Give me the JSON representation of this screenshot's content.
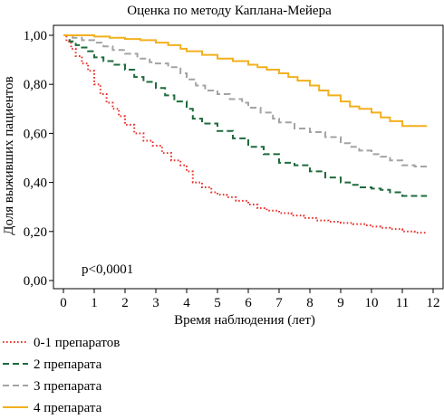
{
  "chart_data": {
    "type": "line",
    "title": "Оценка по методу Каплана-Мейера",
    "xlabel": "Время наблюдения (лет)",
    "ylabel": "Доля выживших пациентов",
    "xlim": [
      0,
      12
    ],
    "ylim": [
      0,
      1
    ],
    "x_ticks": [
      "0",
      "1",
      "2",
      "3",
      "4",
      "5",
      "6",
      "7",
      "8",
      "9",
      "10",
      "11",
      "12"
    ],
    "y_ticks": [
      "0,00",
      "0,20",
      "0,40",
      "0,60",
      "0,80",
      "1,00"
    ],
    "grid": false,
    "legend_position": "bottom-left",
    "annotation": "p<0,0001",
    "series": [
      {
        "name": "0-1 препаратов",
        "color": "#e8322d",
        "dash": "dotted",
        "x": [
          0,
          0.1,
          0.25,
          0.4,
          0.6,
          0.8,
          1.0,
          1.2,
          1.4,
          1.6,
          1.8,
          2.0,
          2.3,
          2.6,
          2.9,
          3.2,
          3.5,
          3.8,
          4.0,
          4.2,
          4.5,
          4.8,
          5.0,
          5.3,
          5.6,
          6.0,
          6.3,
          6.6,
          7.0,
          7.4,
          7.8,
          8.2,
          8.6,
          9.0,
          9.4,
          9.8,
          10.0,
          10.3,
          10.6,
          11.0,
          11.4,
          11.8
        ],
        "y": [
          1.0,
          0.975,
          0.945,
          0.915,
          0.885,
          0.855,
          0.8,
          0.76,
          0.725,
          0.7,
          0.67,
          0.635,
          0.6,
          0.57,
          0.55,
          0.52,
          0.49,
          0.47,
          0.445,
          0.4,
          0.38,
          0.36,
          0.35,
          0.34,
          0.325,
          0.31,
          0.295,
          0.285,
          0.275,
          0.265,
          0.255,
          0.245,
          0.24,
          0.235,
          0.23,
          0.225,
          0.22,
          0.215,
          0.21,
          0.2,
          0.195,
          0.195
        ]
      },
      {
        "name": "2 препарата",
        "color": "#1e6b3b",
        "dash": "dashed",
        "x": [
          0,
          0.2,
          0.4,
          0.6,
          0.8,
          1.0,
          1.3,
          1.6,
          2.0,
          2.3,
          2.6,
          3.0,
          3.3,
          3.6,
          4.0,
          4.2,
          4.5,
          5.0,
          5.5,
          6.0,
          6.5,
          7.0,
          7.5,
          8.0,
          8.5,
          9.0,
          9.3,
          9.6,
          10.0,
          10.3,
          10.6,
          11.0,
          11.4,
          11.8
        ],
        "y": [
          1.0,
          0.975,
          0.96,
          0.95,
          0.935,
          0.91,
          0.895,
          0.88,
          0.86,
          0.83,
          0.81,
          0.785,
          0.755,
          0.73,
          0.7,
          0.66,
          0.64,
          0.61,
          0.58,
          0.545,
          0.515,
          0.48,
          0.47,
          0.445,
          0.42,
          0.4,
          0.39,
          0.38,
          0.375,
          0.37,
          0.36,
          0.345,
          0.345,
          0.345
        ]
      },
      {
        "name": "3 препарата",
        "color": "#a3a3a3",
        "dash": "dashed",
        "x": [
          0,
          0.3,
          0.6,
          1.0,
          1.3,
          1.6,
          2.0,
          2.4,
          2.8,
          3.0,
          3.4,
          3.8,
          4.0,
          4.3,
          4.6,
          5.0,
          5.4,
          5.8,
          6.0,
          6.4,
          6.8,
          7.0,
          7.5,
          8.0,
          8.5,
          9.0,
          9.3,
          9.6,
          10.0,
          10.3,
          10.6,
          11.0,
          11.4,
          11.8
        ],
        "y": [
          1.0,
          0.99,
          0.98,
          0.97,
          0.955,
          0.94,
          0.925,
          0.905,
          0.89,
          0.885,
          0.87,
          0.845,
          0.82,
          0.795,
          0.775,
          0.76,
          0.74,
          0.725,
          0.705,
          0.685,
          0.66,
          0.645,
          0.62,
          0.605,
          0.585,
          0.56,
          0.545,
          0.53,
          0.515,
          0.505,
          0.49,
          0.47,
          0.465,
          0.465
        ]
      },
      {
        "name": "4 препарата",
        "color": "#f2b01e",
        "dash": "solid",
        "x": [
          0,
          0.5,
          1.0,
          1.5,
          2.0,
          2.5,
          3.0,
          3.4,
          3.8,
          4.0,
          4.5,
          5.0,
          5.5,
          6.0,
          6.3,
          6.6,
          7.0,
          7.3,
          7.6,
          8.0,
          8.3,
          8.6,
          9.0,
          9.3,
          9.6,
          10.0,
          10.3,
          10.6,
          11.0,
          11.4,
          11.8
        ],
        "y": [
          1.0,
          1.0,
          0.995,
          0.99,
          0.985,
          0.98,
          0.97,
          0.96,
          0.945,
          0.935,
          0.92,
          0.905,
          0.895,
          0.88,
          0.87,
          0.86,
          0.845,
          0.83,
          0.815,
          0.795,
          0.775,
          0.755,
          0.73,
          0.71,
          0.7,
          0.685,
          0.665,
          0.65,
          0.63,
          0.63,
          0.63
        ]
      }
    ]
  }
}
